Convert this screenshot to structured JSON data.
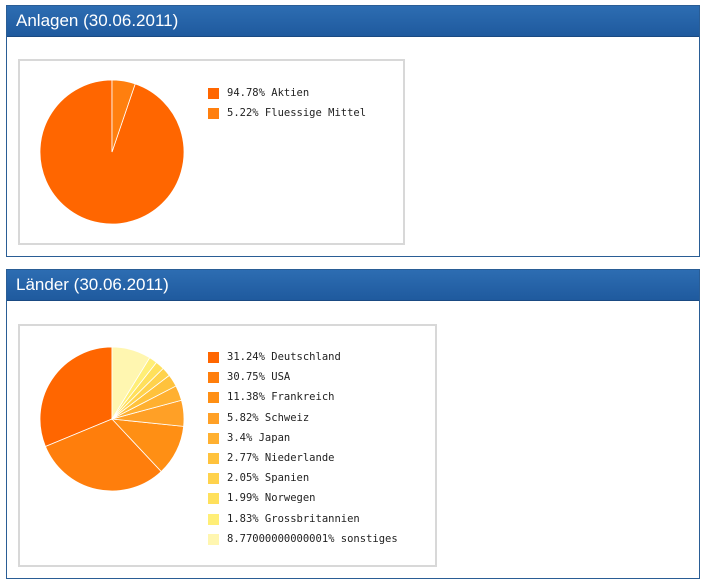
{
  "panels": {
    "anlagen_title": "Anlagen (30.06.2011)",
    "laender_title": "Länder (30.06.2011)"
  },
  "chart_data": [
    {
      "type": "pie",
      "title": "",
      "slices": [
        {
          "label": "94.78% Aktien",
          "value": 94.78,
          "color": "#ff6600"
        },
        {
          "label": "5.22% Fluessige Mittel",
          "value": 5.22,
          "color": "#ff7f0f"
        }
      ]
    },
    {
      "type": "pie",
      "title": "",
      "slices": [
        {
          "label": "31.24% Deutschland",
          "value": 31.24,
          "color": "#ff6600"
        },
        {
          "label": "30.75% USA",
          "value": 30.75,
          "color": "#ff7e0c"
        },
        {
          "label": "11.38% Frankreich",
          "value": 11.38,
          "color": "#ff8f14"
        },
        {
          "label": "5.82% Schweiz",
          "value": 5.82,
          "color": "#ffa026"
        },
        {
          "label": "3.4% Japan",
          "value": 3.4,
          "color": "#ffb030"
        },
        {
          "label": "2.77% Niederlande",
          "value": 2.77,
          "color": "#ffc23c"
        },
        {
          "label": "2.05% Spanien",
          "value": 2.05,
          "color": "#ffd24c"
        },
        {
          "label": "1.99% Norwegen",
          "value": 1.99,
          "color": "#ffe05c"
        },
        {
          "label": "1.83% Grossbritannien",
          "value": 1.83,
          "color": "#ffee77"
        },
        {
          "label": "8.77000000000001% sonstiges",
          "value": 8.77,
          "color": "#fff6b0"
        }
      ]
    }
  ]
}
